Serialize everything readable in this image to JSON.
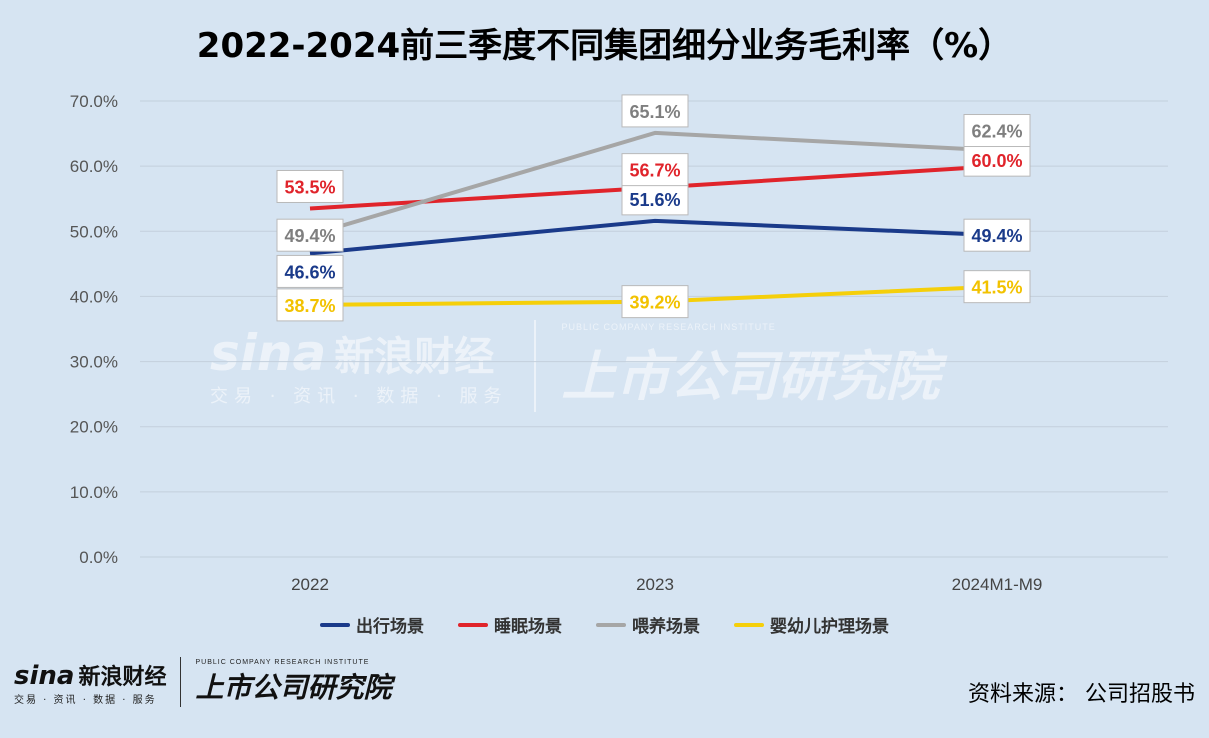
{
  "title": "2022-2024前三季度不同集团细分业务毛利率（%）",
  "source": "资料来源：  公司招股书",
  "brand": {
    "sina_word": "sina",
    "sina_cn": "新浪财经",
    "sina_sub": "交易 · 资讯 · 数据 · 服务",
    "inst_sub": "PUBLIC COMPANY RESEARCH INSTITUTE",
    "inst_main": "上市公司研究院"
  },
  "chart_data": {
    "type": "line",
    "title": "2022-2024前三季度不同集团细分业务毛利率（%）",
    "categories": [
      "2022",
      "2023",
      "2024M1-M9"
    ],
    "ylim": [
      0,
      70
    ],
    "yticks": [
      "0.0%",
      "10.0%",
      "20.0%",
      "30.0%",
      "40.0%",
      "50.0%",
      "60.0%",
      "70.0%"
    ],
    "grid": true,
    "legend_position": "bottom",
    "series": [
      {
        "name": "出行场景",
        "color": "#1a3a8a",
        "values": [
          46.6,
          51.6,
          49.4
        ],
        "labels": [
          "46.6%",
          "51.6%",
          "49.4%"
        ]
      },
      {
        "name": "睡眠场景",
        "color": "#e0242b",
        "values": [
          53.5,
          56.7,
          60.0
        ],
        "labels": [
          "53.5%",
          "56.7%",
          "60.0%"
        ]
      },
      {
        "name": "喂养场景",
        "color": "#a6a6a6",
        "values": [
          49.4,
          65.1,
          62.4
        ],
        "labels": [
          "49.4%",
          "65.1%",
          "62.4%"
        ]
      },
      {
        "name": "婴幼儿护理场景",
        "color": "#f5cf0a",
        "values": [
          38.7,
          39.2,
          41.5
        ],
        "labels": [
          "38.7%",
          "39.2%",
          "41.5%"
        ]
      }
    ]
  }
}
